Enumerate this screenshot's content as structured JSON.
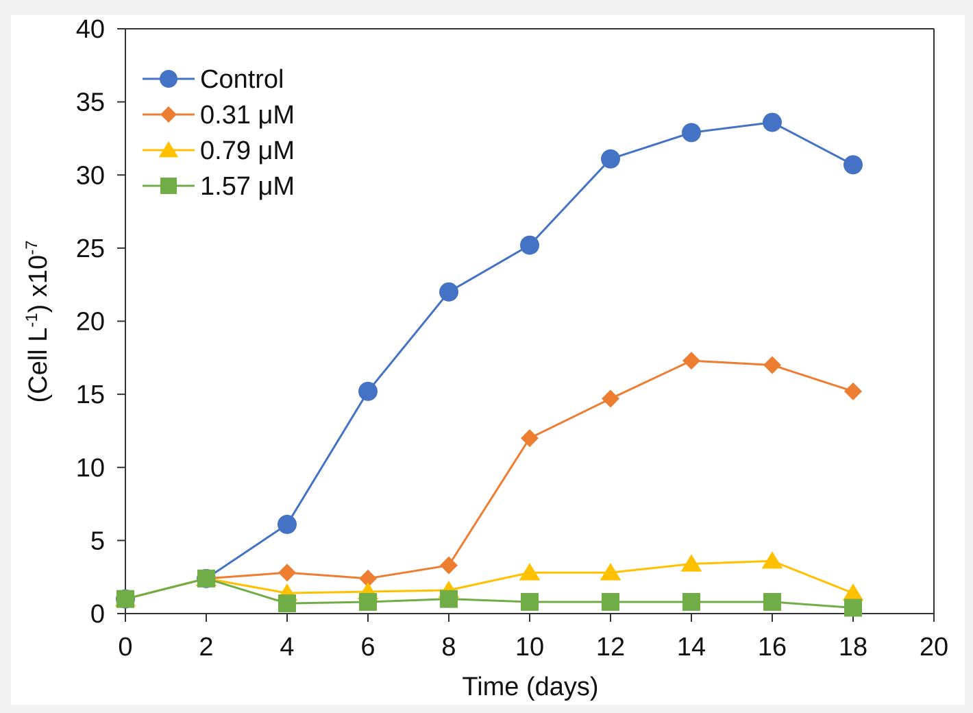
{
  "chart_data": {
    "type": "line",
    "title": "",
    "xlabel": "Time (days)",
    "ylabel_main": "(Cell L",
    "ylabel_sup1": "-1",
    "ylabel_mid": ") x10",
    "ylabel_sup2": "-7",
    "xlim": [
      0,
      20
    ],
    "ylim": [
      0,
      40
    ],
    "xticks": [
      0,
      2,
      4,
      6,
      8,
      10,
      12,
      14,
      16,
      18,
      20
    ],
    "yticks": [
      0,
      5,
      10,
      15,
      20,
      25,
      30,
      35,
      40
    ],
    "grid": false,
    "legend_position": "top-left",
    "series": [
      {
        "name": "Control",
        "color": "#4472c4",
        "marker": "circle",
        "x": [
          0,
          2,
          4,
          6,
          8,
          10,
          12,
          14,
          16,
          18
        ],
        "y": [
          1.0,
          2.4,
          6.1,
          15.2,
          22.0,
          25.2,
          31.1,
          32.9,
          33.6,
          30.7
        ]
      },
      {
        "name": "0.31 μM",
        "color": "#ed7d31",
        "marker": "diamond",
        "x": [
          0,
          2,
          4,
          6,
          8,
          10,
          12,
          14,
          16,
          18
        ],
        "y": [
          1.0,
          2.4,
          2.8,
          2.4,
          3.3,
          12.0,
          14.7,
          17.3,
          17.0,
          15.2
        ]
      },
      {
        "name": "0.79  μM",
        "color": "#ffc000",
        "marker": "triangle",
        "x": [
          0,
          2,
          4,
          6,
          8,
          10,
          12,
          14,
          16,
          18
        ],
        "y": [
          1.0,
          2.4,
          1.4,
          1.5,
          1.6,
          2.8,
          2.8,
          3.4,
          3.6,
          1.4
        ]
      },
      {
        "name": "1.57  μM",
        "color": "#70ad47",
        "marker": "square",
        "x": [
          0,
          2,
          4,
          6,
          8,
          10,
          12,
          14,
          16,
          18
        ],
        "y": [
          1.0,
          2.4,
          0.7,
          0.8,
          1.0,
          0.8,
          0.8,
          0.8,
          0.8,
          0.4
        ]
      }
    ]
  }
}
